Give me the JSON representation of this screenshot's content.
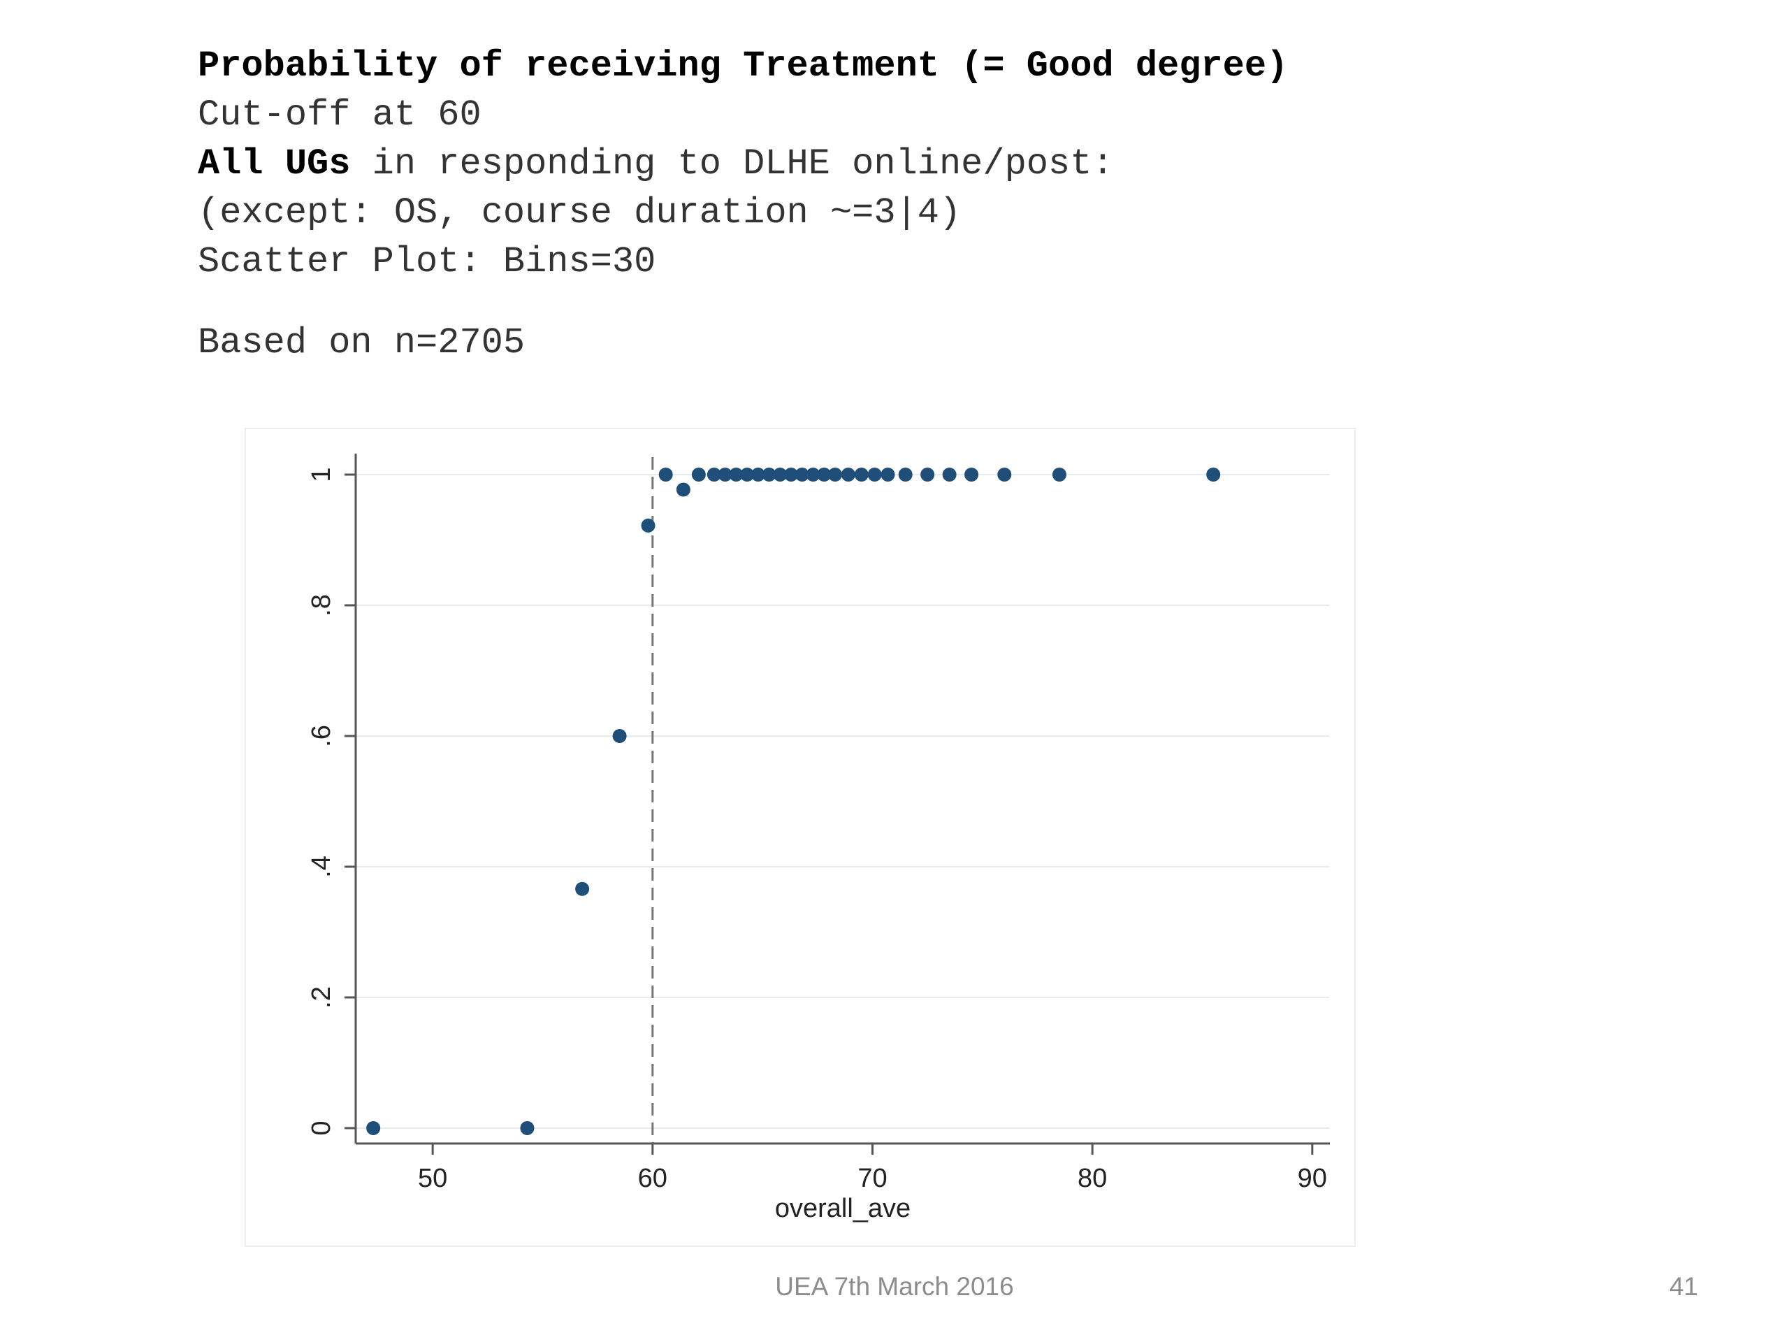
{
  "slide": {
    "title": "Probability of receiving Treatment (= Good degree)",
    "cutoff_line": "Cut-off at 60",
    "sample_bold": "All UGs",
    "sample_rest": " in responding to DLHE online/post:",
    "exception_line": "(except: OS, course duration ~=3|4)",
    "bins_line": "Scatter Plot: Bins=30",
    "n_line": "Based on n=2705",
    "footer_text": "UEA 7th March 2016",
    "page_number": "41"
  },
  "chart_data": {
    "type": "scatter",
    "xlabel": "overall_ave",
    "ylabel": "",
    "xlim": [
      46.5,
      90.8
    ],
    "ylim": [
      0,
      1
    ],
    "xticks": [
      50,
      60,
      70,
      80,
      90
    ],
    "xtick_labels": [
      "50",
      "60",
      "70",
      "80",
      "90"
    ],
    "yticks": [
      0,
      0.2,
      0.4,
      0.6,
      0.8,
      1
    ],
    "ytick_labels": [
      "0",
      ".2",
      ".4",
      ".6",
      ".8",
      "1"
    ],
    "grid": true,
    "cutoff_x": 60,
    "point_color": "#1f4e79",
    "points": [
      {
        "x": 47.3,
        "y": 0
      },
      {
        "x": 54.3,
        "y": 0
      },
      {
        "x": 56.8,
        "y": 0.366
      },
      {
        "x": 58.5,
        "y": 0.6
      },
      {
        "x": 59.8,
        "y": 0.922
      },
      {
        "x": 60.6,
        "y": 1
      },
      {
        "x": 61.4,
        "y": 0.977
      },
      {
        "x": 62.1,
        "y": 1
      },
      {
        "x": 62.8,
        "y": 1
      },
      {
        "x": 63.3,
        "y": 1
      },
      {
        "x": 63.8,
        "y": 1
      },
      {
        "x": 64.3,
        "y": 1
      },
      {
        "x": 64.8,
        "y": 1
      },
      {
        "x": 65.3,
        "y": 1
      },
      {
        "x": 65.8,
        "y": 1
      },
      {
        "x": 66.3,
        "y": 1
      },
      {
        "x": 66.8,
        "y": 1
      },
      {
        "x": 67.3,
        "y": 1
      },
      {
        "x": 67.8,
        "y": 1
      },
      {
        "x": 68.3,
        "y": 1
      },
      {
        "x": 68.9,
        "y": 1
      },
      {
        "x": 69.5,
        "y": 1
      },
      {
        "x": 70.1,
        "y": 1
      },
      {
        "x": 70.7,
        "y": 1
      },
      {
        "x": 71.5,
        "y": 1
      },
      {
        "x": 72.5,
        "y": 1
      },
      {
        "x": 73.5,
        "y": 1
      },
      {
        "x": 74.5,
        "y": 1
      },
      {
        "x": 76.0,
        "y": 1
      },
      {
        "x": 78.5,
        "y": 1
      },
      {
        "x": 85.5,
        "y": 1
      }
    ]
  }
}
